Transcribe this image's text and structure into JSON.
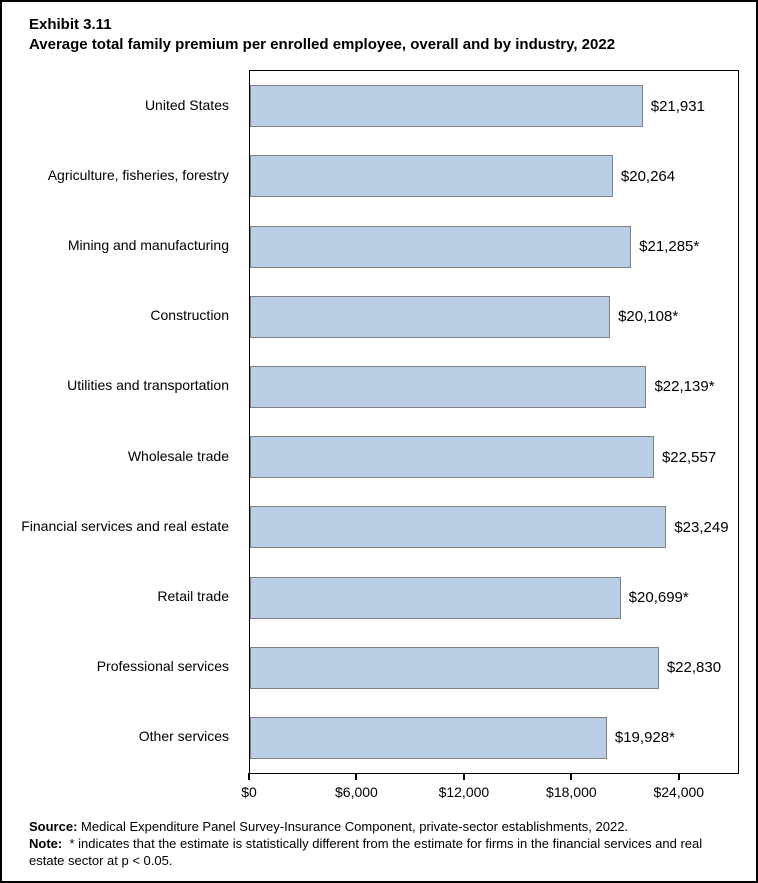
{
  "title": {
    "exhibit": "Exhibit 3.11",
    "line": "Average total family premium per enrolled employee, overall and by industry, 2022"
  },
  "chart_data": {
    "type": "bar",
    "orientation": "horizontal",
    "title": "Average total family premium per enrolled employee, overall and by industry, 2022",
    "categories": [
      "United States",
      "Agriculture, fisheries, forestry",
      "Mining and manufacturing",
      "Construction",
      "Utilities and transportation",
      "Wholesale trade",
      "Financial services and real estate",
      "Retail trade",
      "Professional services",
      "Other services"
    ],
    "values": [
      21931,
      20264,
      21285,
      20108,
      22139,
      22557,
      23249,
      20699,
      22830,
      19928
    ],
    "value_labels": [
      "$21,931",
      "$20,264",
      "$21,285*",
      "$20,108*",
      "$22,139*",
      "$22,557",
      "$23,249",
      "$20,699*",
      "$22,830",
      "$19,928*"
    ],
    "xlabel": "",
    "ylabel": "",
    "xlim": [
      0,
      27250
    ],
    "xticks": [
      {
        "value": 0,
        "label": "$0"
      },
      {
        "value": 6000,
        "label": "$6,000"
      },
      {
        "value": 12000,
        "label": "$12,000"
      },
      {
        "value": 18000,
        "label": "$18,000"
      },
      {
        "value": 24000,
        "label": "$24,000"
      }
    ],
    "grid": false,
    "legend": false,
    "bar_color": "#b9cde5",
    "bar_border_color": "#808080"
  },
  "footer": {
    "source_label": "Source:",
    "source_text": "Medical Expenditure Panel Survey-Insurance Component, private-sector establishments, 2022.",
    "note_label": "Note:",
    "note_text": "* indicates that the estimate is statistically different from the estimate for firms in the financial services and real estate sector at p < 0.05."
  }
}
